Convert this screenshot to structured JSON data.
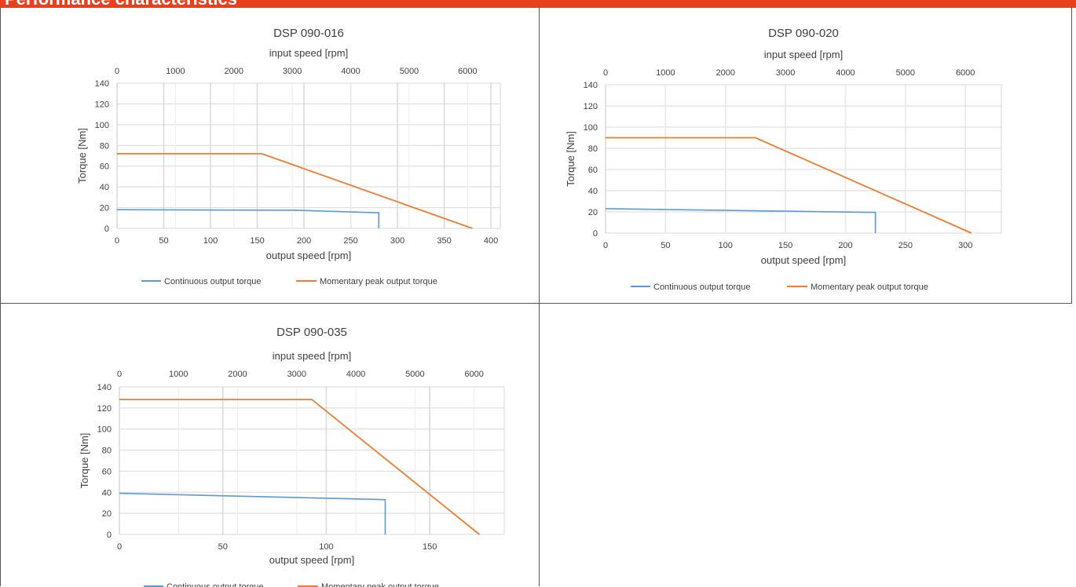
{
  "header": {
    "title": "Performance characteristics",
    "color": "#e8401c"
  },
  "chart_data": [
    {
      "type": "line",
      "title": "DSP 090-016",
      "xlabel": "output speed [rpm]",
      "x2label": "input speed [rpm]",
      "ylabel": "Torque [Nm]",
      "xlim": [
        0,
        410
      ],
      "x2lim": [
        0,
        6560
      ],
      "ylim": [
        0,
        140
      ],
      "xticks": [
        0,
        50,
        100,
        150,
        200,
        250,
        300,
        350,
        400
      ],
      "x2ticks": [
        0,
        1000,
        2000,
        3000,
        4000,
        5000,
        6000
      ],
      "yticks": [
        0,
        20,
        40,
        60,
        80,
        100,
        120,
        140
      ],
      "grid": true,
      "legend_position": "bottom",
      "series": [
        {
          "name": "Continuous output torque",
          "color": "#5b9bd5",
          "points": [
            [
              0,
              18
            ],
            [
              190,
              17.5
            ],
            [
              280,
              15
            ],
            [
              280,
              0
            ]
          ]
        },
        {
          "name": "Momentary peak output torque",
          "color": "#ed7d31",
          "points": [
            [
              0,
              72
            ],
            [
              155,
              72
            ],
            [
              380,
              0
            ]
          ]
        }
      ]
    },
    {
      "type": "line",
      "title": "DSP 090-020",
      "xlabel": "output speed [rpm]",
      "x2label": "input speed [rpm]",
      "ylabel": "Torque [Nm]",
      "xlim": [
        0,
        330
      ],
      "x2lim": [
        0,
        6600
      ],
      "ylim": [
        0,
        140
      ],
      "xticks": [
        0,
        50,
        100,
        150,
        200,
        250,
        300
      ],
      "x2ticks": [
        0,
        1000,
        2000,
        3000,
        4000,
        5000,
        6000
      ],
      "yticks": [
        0,
        20,
        40,
        60,
        80,
        100,
        120,
        140
      ],
      "grid": true,
      "legend_position": "bottom",
      "series": [
        {
          "name": "Continuous output torque",
          "color": "#5b9bd5",
          "points": [
            [
              0,
              23
            ],
            [
              225,
              19.5
            ],
            [
              225,
              0
            ]
          ]
        },
        {
          "name": "Momentary peak output torque",
          "color": "#ed7d31",
          "points": [
            [
              0,
              90
            ],
            [
              125,
              90
            ],
            [
              305,
              0
            ]
          ]
        }
      ]
    },
    {
      "type": "line",
      "title": "DSP 090-035",
      "xlabel": "output speed [rpm]",
      "x2label": "input speed [rpm]",
      "ylabel": "Torque [Nm]",
      "xlim": [
        0,
        186
      ],
      "x2lim": [
        0,
        6510
      ],
      "ylim": [
        0,
        140
      ],
      "xticks": [
        0,
        50,
        100,
        150
      ],
      "x2ticks": [
        0,
        1000,
        2000,
        3000,
        4000,
        5000,
        6000
      ],
      "yticks": [
        0,
        20,
        40,
        60,
        80,
        100,
        120,
        140
      ],
      "grid": true,
      "legend_position": "bottom",
      "series": [
        {
          "name": "Continuous output torque",
          "color": "#5b9bd5",
          "points": [
            [
              0,
              39
            ],
            [
              128.5,
              33
            ],
            [
              128.5,
              0
            ]
          ]
        },
        {
          "name": "Momentary peak output torque",
          "color": "#ed7d31",
          "points": [
            [
              0,
              128
            ],
            [
              93,
              128
            ],
            [
              174,
              0
            ]
          ]
        }
      ]
    }
  ]
}
